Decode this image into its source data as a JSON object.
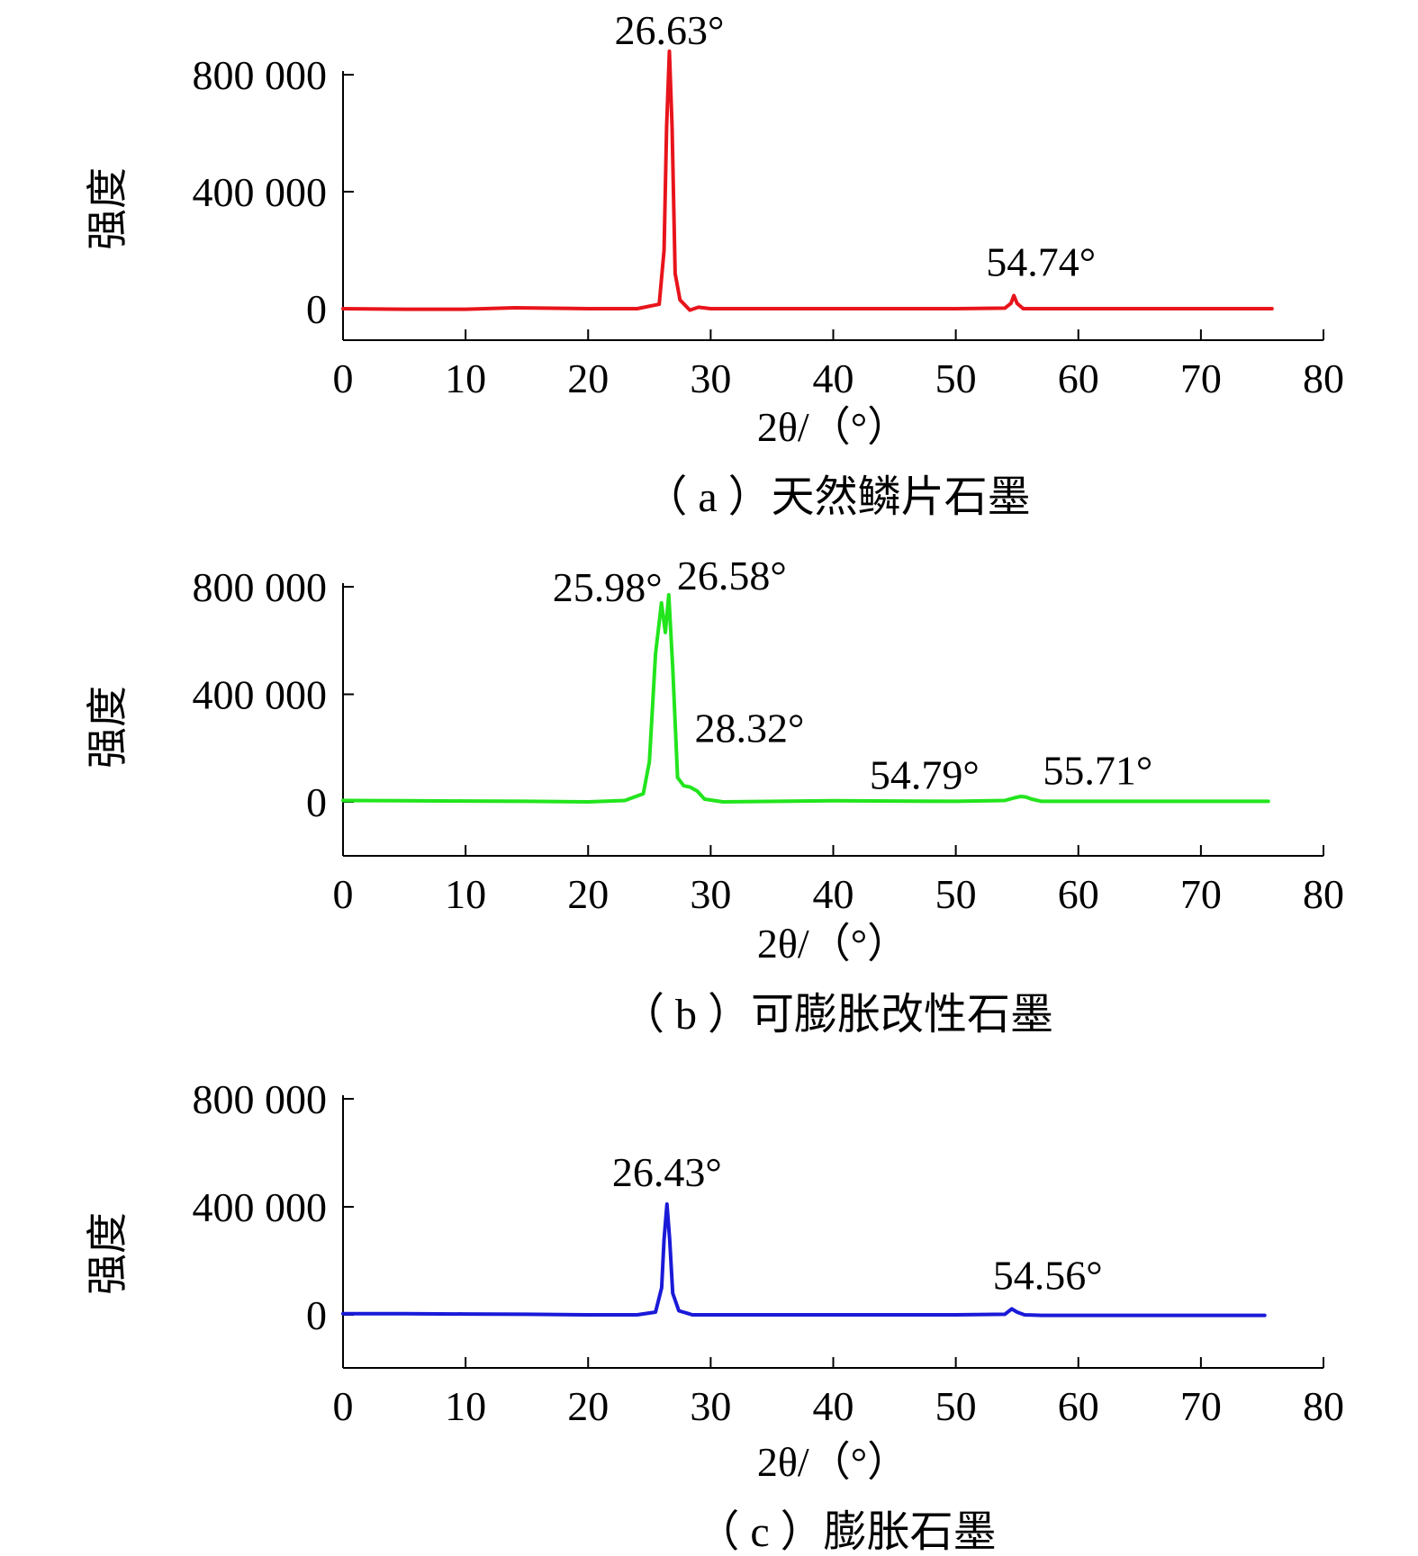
{
  "chart_data": [
    {
      "type": "line",
      "caption": "（ a ）天然鳞片石墨",
      "xlabel": "2θ/（°）",
      "ylabel": "强度",
      "xlim": [
        0,
        80
      ],
      "ylim": [
        -100000,
        800000
      ],
      "xticks": [
        0,
        10,
        20,
        30,
        40,
        50,
        60,
        70,
        80
      ],
      "yticks": [
        0,
        400000,
        800000
      ],
      "ytick_labels": [
        "0",
        "400 000",
        "800 000"
      ],
      "xtick_labels": [
        "0",
        "10",
        "20",
        "30",
        "40",
        "50",
        "60",
        "70",
        "80"
      ],
      "color": "#e8141b",
      "series": [
        {
          "x": [
            0,
            5,
            10,
            14,
            20,
            24,
            25.8,
            26.2,
            26.4,
            26.63,
            26.85,
            27.1,
            27.5,
            28.3,
            29.0,
            30,
            40,
            50,
            54.0,
            54.5,
            54.74,
            55.0,
            55.5,
            60,
            70,
            75.8
          ],
          "y": [
            0,
            -2000,
            -2000,
            3000,
            0,
            0,
            15000,
            200000,
            620000,
            880000,
            620000,
            120000,
            30000,
            -5000,
            5000,
            0,
            0,
            0,
            2000,
            18000,
            45000,
            18000,
            0,
            0,
            0,
            0
          ]
        }
      ],
      "annotations": [
        {
          "text": "26.63°",
          "x": 26.63,
          "y": 880000
        },
        {
          "text": "54.74°",
          "x": 54.74,
          "y": 45000
        }
      ]
    },
    {
      "type": "line",
      "caption": "（ b ）可膨胀改性石墨",
      "xlabel": "2θ/（°）",
      "ylabel": "强度",
      "xlim": [
        0,
        80
      ],
      "ylim": [
        -200000,
        800000
      ],
      "xticks": [
        0,
        10,
        20,
        30,
        40,
        50,
        60,
        70,
        80
      ],
      "yticks": [
        0,
        400000,
        800000
      ],
      "ytick_labels": [
        "0",
        "400 000",
        "800 000"
      ],
      "xtick_labels": [
        "0",
        "10",
        "20",
        "30",
        "40",
        "50",
        "60",
        "70",
        "80"
      ],
      "color": "#22e51d",
      "series": [
        {
          "x": [
            0,
            5,
            10,
            15,
            20,
            23,
            24.5,
            25.0,
            25.5,
            25.98,
            26.3,
            26.58,
            26.9,
            27.3,
            27.8,
            28.32,
            28.9,
            29.5,
            31,
            40,
            50,
            54.0,
            54.79,
            55.3,
            55.71,
            56.2,
            57,
            60,
            70,
            75.5
          ],
          "y": [
            5000,
            4000,
            3000,
            2000,
            0,
            5000,
            30000,
            150000,
            550000,
            740000,
            630000,
            770000,
            500000,
            90000,
            60000,
            55000,
            40000,
            10000,
            0,
            4000,
            2000,
            5000,
            15000,
            20000,
            18000,
            10000,
            2000,
            2000,
            2000,
            2000
          ]
        }
      ],
      "annotations": [
        {
          "text": "25.98°",
          "x": 25.98,
          "y": 740000
        },
        {
          "text": "26.58°",
          "x": 26.58,
          "y": 770000
        },
        {
          "text": "28.32°",
          "x": 28.32,
          "y": 55000
        },
        {
          "text": "54.79°",
          "x": 54.79,
          "y": 15000
        },
        {
          "text": "55.71°",
          "x": 55.71,
          "y": 18000
        }
      ]
    },
    {
      "type": "line",
      "caption": "（ c ）膨胀石墨",
      "xlabel": "2θ/（°）",
      "ylabel": "强度",
      "xlim": [
        0,
        80
      ],
      "ylim": [
        -200000,
        800000
      ],
      "xticks": [
        0,
        10,
        20,
        30,
        40,
        50,
        60,
        70,
        80
      ],
      "yticks": [
        0,
        400000,
        800000
      ],
      "ytick_labels": [
        "0",
        "400 000",
        "800 000"
      ],
      "xtick_labels": [
        "0",
        "10",
        "20",
        "30",
        "40",
        "50",
        "60",
        "70",
        "80"
      ],
      "color": "#1a1ad8",
      "series": [
        {
          "x": [
            0,
            5,
            10,
            15,
            20,
            24,
            25.5,
            26.0,
            26.2,
            26.43,
            26.65,
            26.9,
            27.4,
            28.5,
            30,
            40,
            50,
            54.0,
            54.56,
            55.0,
            55.6,
            57,
            60,
            70,
            75.2
          ],
          "y": [
            4000,
            4000,
            3000,
            2000,
            0,
            0,
            10000,
            100000,
            280000,
            410000,
            280000,
            80000,
            15000,
            0,
            0,
            0,
            0,
            2000,
            22000,
            10000,
            0,
            -2000,
            -2000,
            -2000,
            -2000
          ]
        }
      ],
      "annotations": [
        {
          "text": "26.43°",
          "x": 26.43,
          "y": 410000
        },
        {
          "text": "54.56°",
          "x": 54.56,
          "y": 22000
        }
      ]
    }
  ]
}
